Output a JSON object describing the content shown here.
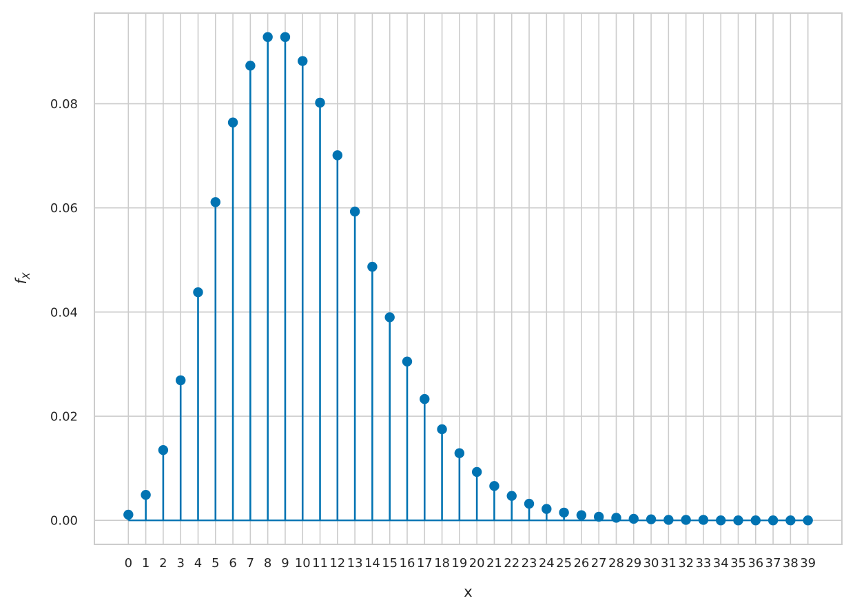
{
  "chart_data": {
    "type": "stem",
    "xlabel": "x",
    "ylabel": "f",
    "ylabel_subscript": "X",
    "x": [
      0,
      1,
      2,
      3,
      4,
      5,
      6,
      7,
      8,
      9,
      10,
      11,
      12,
      13,
      14,
      15,
      16,
      17,
      18,
      19,
      20,
      21,
      22,
      23,
      24,
      25,
      26,
      27,
      28,
      29,
      30,
      31,
      32,
      33,
      34,
      35,
      36,
      37,
      38,
      39
    ],
    "x_tick_labels": [
      "0",
      "1",
      "2",
      "3",
      "4",
      "5",
      "6",
      "7",
      "8",
      "9",
      "10",
      "11",
      "12",
      "13",
      "14",
      "15",
      "16",
      "17",
      "18",
      "19",
      "20",
      "21",
      "22",
      "23",
      "24",
      "25",
      "26",
      "27",
      "28",
      "29",
      "30",
      "31",
      "32",
      "33",
      "34",
      "35",
      "36",
      "37",
      "38",
      "39"
    ],
    "values": [
      0.0011,
      0.0049,
      0.0135,
      0.0269,
      0.0438,
      0.0611,
      0.0764,
      0.0873,
      0.0928,
      0.0928,
      0.0882,
      0.0802,
      0.0701,
      0.0593,
      0.0487,
      0.039,
      0.0305,
      0.0233,
      0.0175,
      0.0129,
      0.0093,
      0.0066,
      0.0047,
      0.0032,
      0.0022,
      0.0015,
      0.001,
      0.0007,
      0.0005,
      0.0003,
      0.0002,
      0.0001,
      0.0001,
      0.0001,
      0.0,
      0.0,
      0.0,
      0.0,
      0.0,
      0.0
    ],
    "y_ticks": [
      0.0,
      0.02,
      0.04,
      0.06,
      0.08
    ],
    "y_tick_labels": [
      "0.00",
      "0.02",
      "0.04",
      "0.06",
      "0.08"
    ],
    "xlim": [
      -1.95,
      40.95
    ],
    "ylim": [
      -0.0046,
      0.0974
    ],
    "grid": true,
    "color": "#0173b2",
    "grid_color": "#cccccc"
  }
}
